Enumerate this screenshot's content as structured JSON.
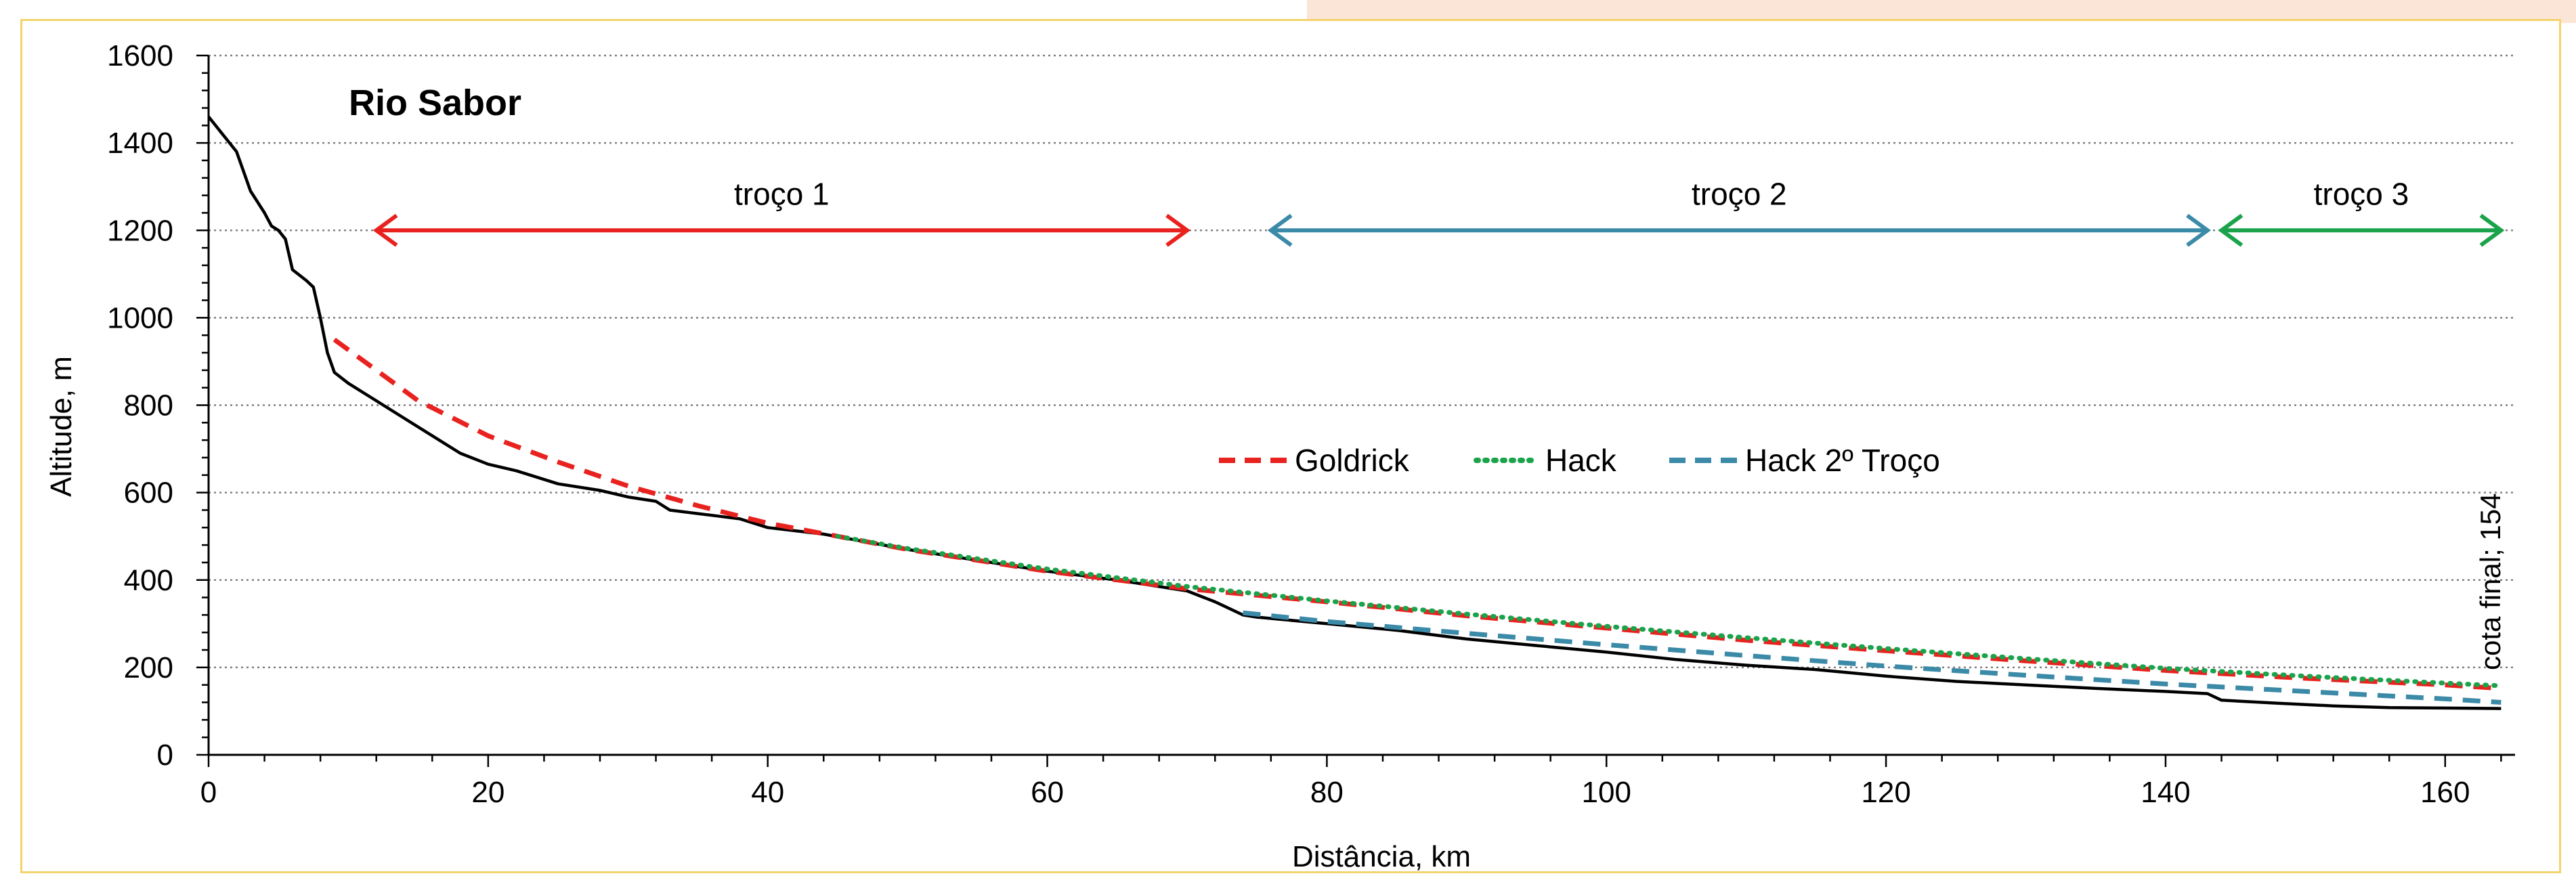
{
  "chart_data": {
    "type": "line",
    "title": "Rio Sabor",
    "xlabel": "Distância, km",
    "ylabel": "Altitude, m",
    "xlim": [
      0,
      165
    ],
    "ylim": [
      0,
      1600
    ],
    "xticks": [
      0,
      20,
      40,
      60,
      80,
      100,
      120,
      140,
      160
    ],
    "yticks": [
      0,
      200,
      400,
      600,
      800,
      1000,
      1200,
      1400,
      1600
    ],
    "grid": "horizontal dotted",
    "legend_position": "center-right",
    "series": [
      {
        "name": "",
        "color": "#000000",
        "style": "solid",
        "points": [
          [
            0,
            1460
          ],
          [
            1,
            1420
          ],
          [
            2,
            1380
          ],
          [
            3,
            1290
          ],
          [
            4,
            1240
          ],
          [
            4.5,
            1210
          ],
          [
            5,
            1200
          ],
          [
            5.5,
            1180
          ],
          [
            6,
            1110
          ],
          [
            7,
            1085
          ],
          [
            7.5,
            1070
          ],
          [
            8,
            1000
          ],
          [
            8.5,
            920
          ],
          [
            9,
            875
          ],
          [
            10,
            850
          ],
          [
            11,
            830
          ],
          [
            12,
            810
          ],
          [
            13,
            790
          ],
          [
            14,
            770
          ],
          [
            16,
            730
          ],
          [
            18,
            690
          ],
          [
            20,
            665
          ],
          [
            22,
            650
          ],
          [
            25,
            620
          ],
          [
            28,
            605
          ],
          [
            30,
            590
          ],
          [
            32,
            580
          ],
          [
            33,
            560
          ],
          [
            36,
            548
          ],
          [
            38,
            540
          ],
          [
            40,
            520
          ],
          [
            44,
            505
          ],
          [
            50,
            470
          ],
          [
            55,
            445
          ],
          [
            60,
            420
          ],
          [
            65,
            400
          ],
          [
            70,
            375
          ],
          [
            72,
            350
          ],
          [
            74,
            320
          ],
          [
            75,
            315
          ],
          [
            80,
            300
          ],
          [
            85,
            285
          ],
          [
            90,
            265
          ],
          [
            95,
            250
          ],
          [
            100,
            235
          ],
          [
            105,
            218
          ],
          [
            110,
            205
          ],
          [
            115,
            195
          ],
          [
            120,
            180
          ],
          [
            125,
            168
          ],
          [
            130,
            160
          ],
          [
            135,
            152
          ],
          [
            140,
            145
          ],
          [
            143,
            140
          ],
          [
            144,
            125
          ],
          [
            148,
            118
          ],
          [
            152,
            112
          ],
          [
            156,
            108
          ],
          [
            160,
            107
          ],
          [
            164,
            106
          ]
        ]
      },
      {
        "name": "Goldrick",
        "color": "#e8221f",
        "style": "dashed",
        "points": [
          [
            9,
            950
          ],
          [
            12,
            880
          ],
          [
            15,
            810
          ],
          [
            20,
            730
          ],
          [
            25,
            670
          ],
          [
            30,
            615
          ],
          [
            35,
            570
          ],
          [
            40,
            530
          ],
          [
            50,
            470
          ],
          [
            60,
            420
          ],
          [
            70,
            380
          ],
          [
            80,
            350
          ],
          [
            90,
            318
          ],
          [
            100,
            290
          ],
          [
            110,
            262
          ],
          [
            120,
            238
          ],
          [
            130,
            215
          ],
          [
            140,
            193
          ],
          [
            150,
            175
          ],
          [
            160,
            160
          ],
          [
            164,
            152
          ]
        ]
      },
      {
        "name": "Hack",
        "color": "#1aa34a",
        "style": "dotted",
        "points": [
          [
            45,
            500
          ],
          [
            50,
            472
          ],
          [
            60,
            425
          ],
          [
            70,
            385
          ],
          [
            80,
            352
          ],
          [
            90,
            322
          ],
          [
            100,
            294
          ],
          [
            110,
            268
          ],
          [
            120,
            243
          ],
          [
            130,
            220
          ],
          [
            140,
            198
          ],
          [
            150,
            180
          ],
          [
            160,
            164
          ],
          [
            164,
            158
          ]
        ]
      },
      {
        "name": "Hack 2º Troço",
        "color": "#3b8aa8",
        "style": "dashed",
        "points": [
          [
            74,
            325
          ],
          [
            80,
            305
          ],
          [
            90,
            278
          ],
          [
            100,
            252
          ],
          [
            110,
            227
          ],
          [
            120,
            203
          ],
          [
            130,
            182
          ],
          [
            140,
            162
          ],
          [
            150,
            145
          ],
          [
            160,
            128
          ],
          [
            164,
            120
          ]
        ]
      }
    ],
    "segments": [
      {
        "label": "troço 1",
        "x_start": 12,
        "x_end": 70,
        "y": 1200,
        "color": "#e8221f"
      },
      {
        "label": "troço 2",
        "x_start": 76,
        "x_end": 143,
        "y": 1200,
        "color": "#3b8aa8"
      },
      {
        "label": "troço 3",
        "x_start": 144,
        "x_end": 164,
        "y": 1200,
        "color": "#1aa34a"
      }
    ],
    "annotation": {
      "text": "cota final; 154",
      "x": 164,
      "y": 154
    }
  }
}
